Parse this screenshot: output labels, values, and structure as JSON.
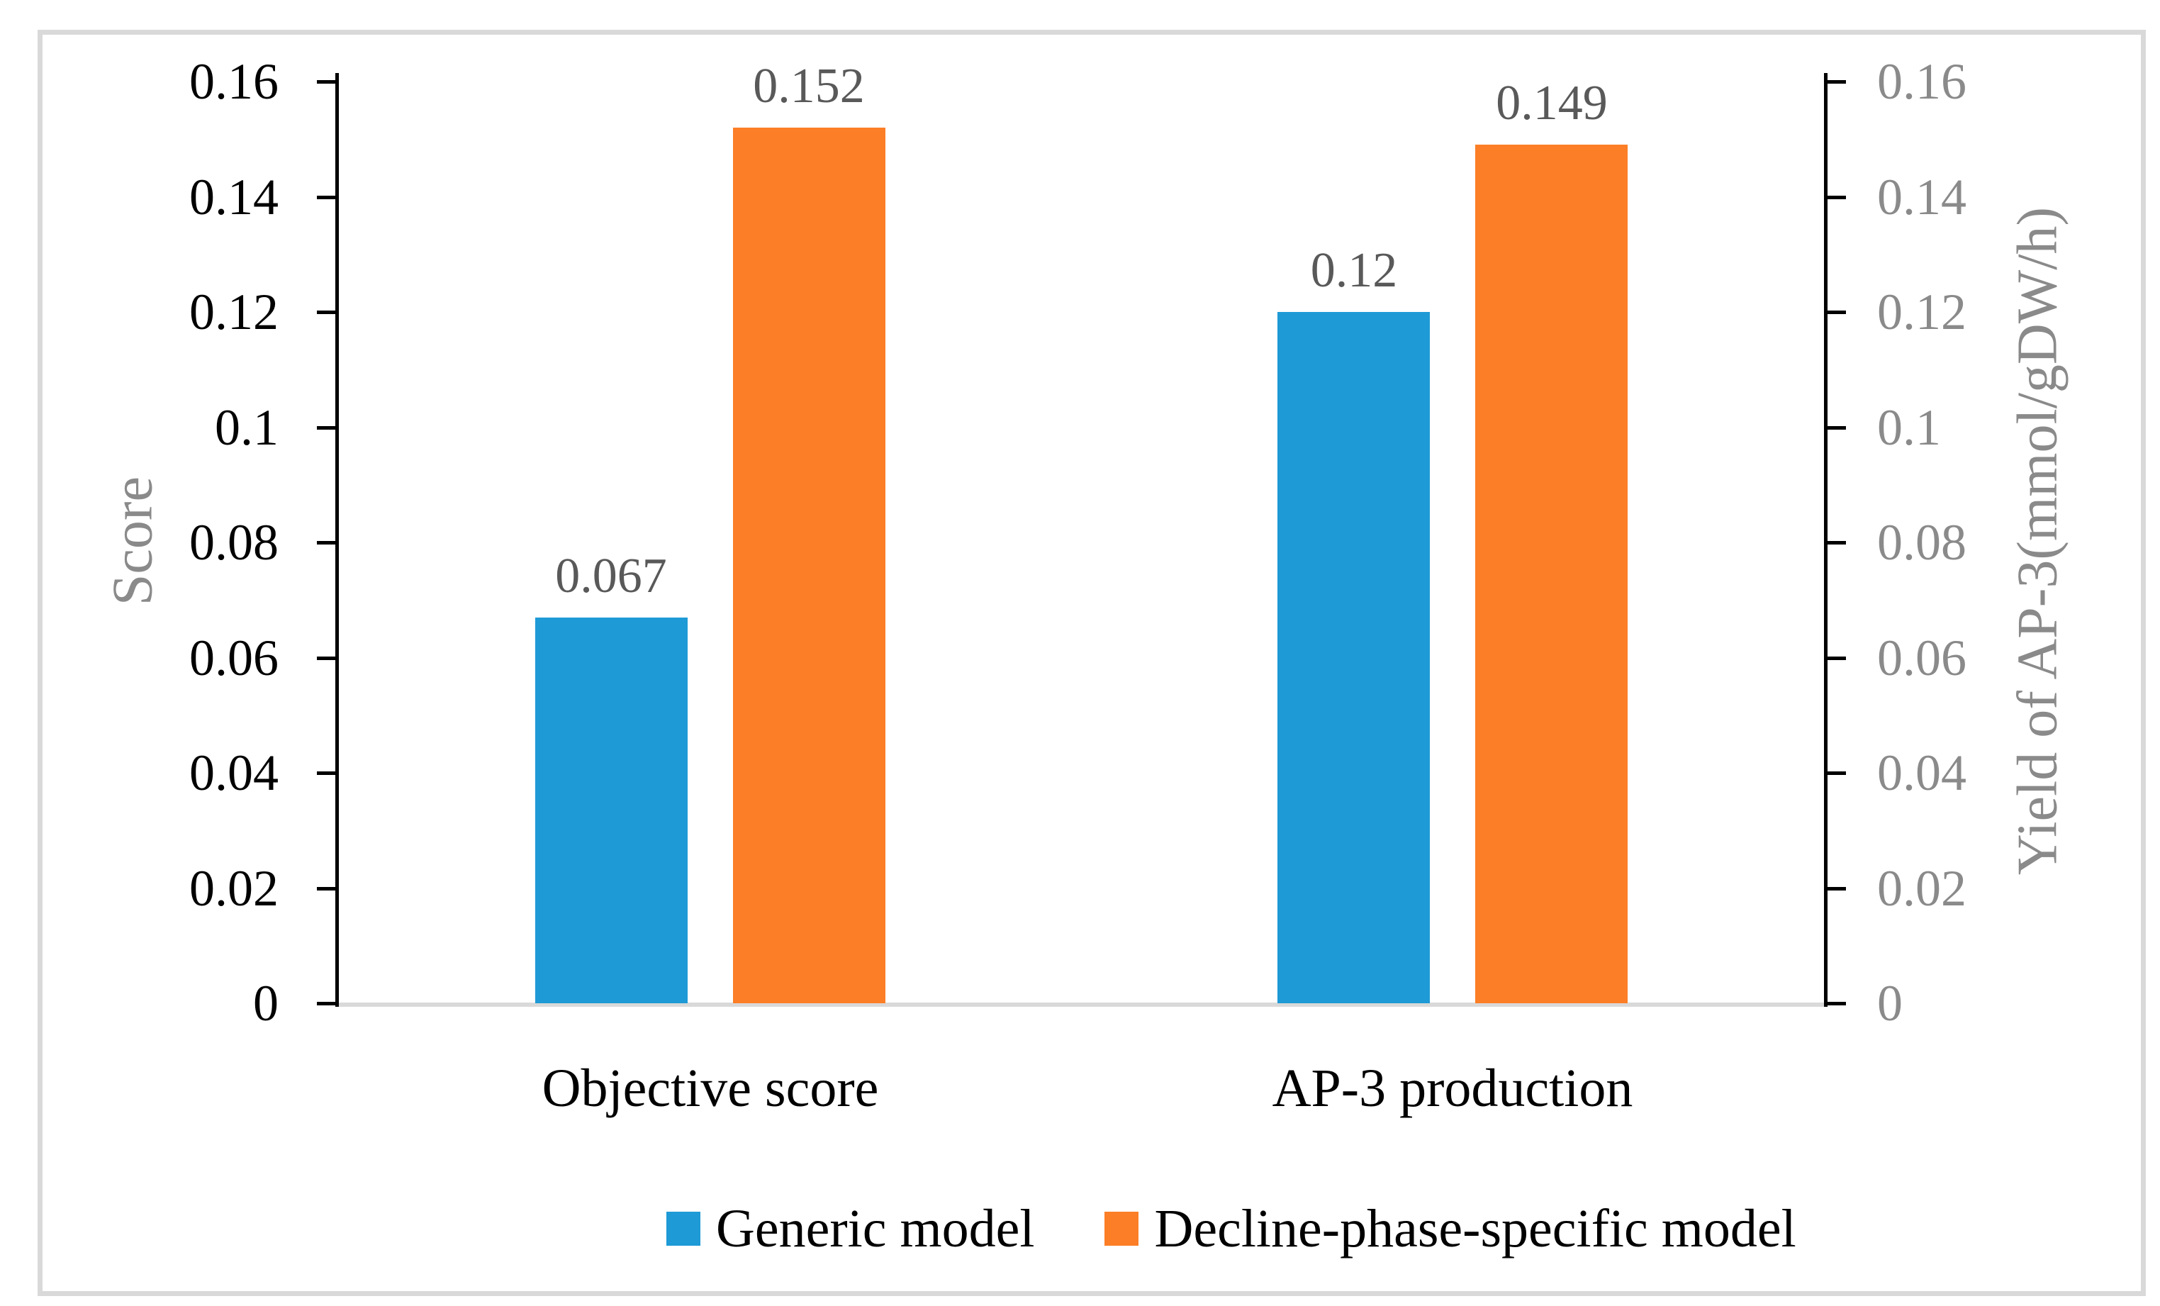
{
  "chart_data": {
    "type": "bar",
    "title": "",
    "categories": [
      "Objective score",
      "AP-3 production"
    ],
    "series": [
      {
        "name": "Generic model",
        "color": "#1E9AD6",
        "values": [
          0.067,
          0.12
        ],
        "labels": [
          "0.067",
          "0.12"
        ]
      },
      {
        "name": "Decline-phase-specific model",
        "color": "#FC7E26",
        "values": [
          0.152,
          0.149
        ],
        "labels": [
          "0.152",
          "0.149"
        ]
      }
    ],
    "ylabel_left": "Score",
    "ylabel_right": "Yield of AP-3(mmol/gDW/h)",
    "y_axis": {
      "min": 0,
      "max": 0.16,
      "step": 0.02,
      "tick_labels": [
        "0",
        "0.02",
        "0.04",
        "0.06",
        "0.08",
        "0.1",
        "0.12",
        "0.14",
        "0.16"
      ]
    },
    "legend_position": "bottom",
    "grid": false
  },
  "colors": {
    "bar_blue": "#1E9AD6",
    "bar_orange": "#FC7E26",
    "frame_gray": "#D9D9D9",
    "baseline_gray": "#D9D9D9",
    "axis_black": "#000000",
    "data_label_gray": "#595959",
    "secondary_text_gray": "#8A8A8A",
    "primary_text_black": "#000000"
  }
}
